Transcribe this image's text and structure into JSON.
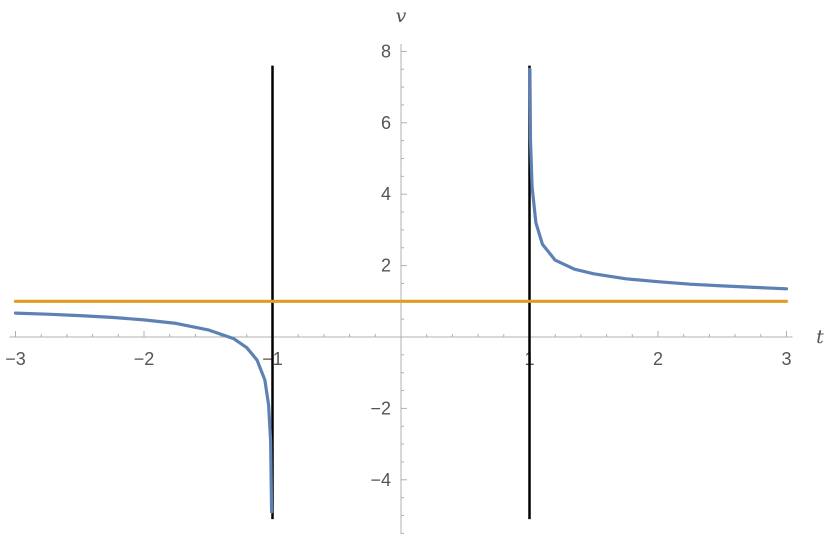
{
  "chart_data": {
    "type": "line",
    "title": "",
    "xlabel": "t",
    "ylabel": "v",
    "xlim": [
      -3,
      3
    ],
    "ylim": [
      -5.5,
      8.2
    ],
    "grid": false,
    "x_ticks": [
      -3,
      -2,
      -1,
      1,
      2,
      3
    ],
    "y_ticks": [
      -4,
      -2,
      2,
      4,
      6,
      8
    ],
    "x_tick_labels": [
      "−3",
      "−2",
      "−1",
      "1",
      "2",
      "3"
    ],
    "y_tick_labels": [
      "−4",
      "−2",
      "2",
      "4",
      "6",
      "8"
    ],
    "series": [
      {
        "color": "#5e81b5",
        "segments": [
          {
            "x": [
              -3,
              -2.75,
              -2.5,
              -2.25,
              -2,
              -1.75,
              -1.5,
              -1.3,
              -1.2,
              -1.12,
              -1.06,
              -1.03,
              -1.015,
              -1.007
            ],
            "y": [
              0.67,
              0.64,
              0.6,
              0.55,
              0.48,
              0.38,
              0.2,
              -0.05,
              -0.3,
              -0.65,
              -1.2,
              -1.9,
              -2.9,
              -4.9
            ]
          },
          {
            "x": [
              1.003,
              1.008,
              1.02,
              1.05,
              1.1,
              1.2,
              1.35,
              1.5,
              1.75,
              2,
              2.25,
              2.5,
              2.75,
              3
            ],
            "y": [
              7.5,
              5.5,
              4.2,
              3.2,
              2.6,
              2.15,
              1.9,
              1.77,
              1.63,
              1.55,
              1.48,
              1.43,
              1.39,
              1.35
            ]
          }
        ]
      },
      {
        "color": "#e19c24",
        "segments": [
          {
            "x": [
              -3,
              3
            ],
            "y": [
              1,
              1
            ]
          }
        ]
      }
    ],
    "vertical_lines": [
      {
        "x": -1,
        "y_range": [
          -5.1,
          7.6
        ],
        "color": "#000000"
      },
      {
        "x": 1,
        "y_range": [
          -5.1,
          7.6
        ],
        "color": "#000000"
      }
    ]
  }
}
